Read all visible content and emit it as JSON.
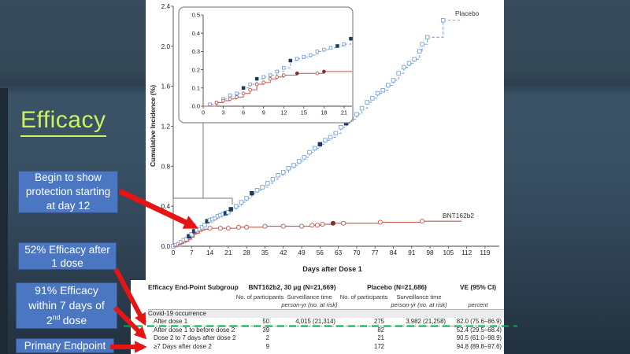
{
  "slide": {
    "title": "Efficacy",
    "callout1": "Begin to show\nprotection starting\nat day 12",
    "callout2": "52% Efficacy after\n1 dose",
    "callout3_l12": "91% Efficacy\nwithin 7 days of",
    "callout3_base": "2",
    "callout3_sup": "nd",
    "callout3_rest": "dose",
    "callout4": "Primary Endpoint",
    "colors": {
      "title": "#ccf35f",
      "callout_fill": "#4a76c2",
      "callout_border": "#35548c",
      "arrow": "#e61414",
      "highlight_line": "#00a651",
      "placebo": "#7aa3d6",
      "placebo_filled": "#1d3a66",
      "bnt162b2": "#c4564a",
      "bnt162b2_filled": "#8b2f24"
    }
  },
  "chart_data": [
    {
      "id": "main",
      "type": "line",
      "title": "",
      "xlabel": "Days after Dose 1",
      "ylabel": "Cumulative Incidence (%)",
      "xlim": [
        0,
        119
      ],
      "ylim": [
        0,
        2.4
      ],
      "xticks": [
        0,
        7,
        14,
        21,
        28,
        35,
        42,
        49,
        56,
        63,
        70,
        77,
        84,
        91,
        98,
        105,
        112,
        119
      ],
      "yticks": [
        "0.0",
        "0.4",
        "0.8",
        "1.2",
        "1.6",
        "2.0",
        "2.4"
      ],
      "grid": false,
      "legend_position": "inline-end-labels",
      "series": [
        {
          "name": "Placebo",
          "color": "#7aa3d6",
          "fill_color": "#1d3a66",
          "dash": true,
          "marker": "square",
          "x": [
            0,
            1,
            2,
            3,
            4,
            5,
            6,
            7,
            8,
            9,
            10,
            11,
            12,
            13,
            14,
            15,
            16,
            17,
            18,
            19,
            20,
            21,
            22,
            24,
            26,
            28,
            30,
            32,
            34,
            36,
            38,
            40,
            42,
            44,
            46,
            48,
            50,
            52,
            54,
            56,
            58,
            60,
            62,
            64,
            66,
            68,
            70,
            72,
            74,
            76,
            78,
            80,
            82,
            84,
            86,
            88,
            90,
            92,
            94,
            95,
            97,
            103,
            110
          ],
          "y": [
            0,
            0.01,
            0.02,
            0.04,
            0.06,
            0.07,
            0.1,
            0.12,
            0.15,
            0.16,
            0.17,
            0.19,
            0.21,
            0.25,
            0.26,
            0.27,
            0.28,
            0.3,
            0.31,
            0.32,
            0.33,
            0.34,
            0.37,
            0.4,
            0.44,
            0.48,
            0.53,
            0.56,
            0.59,
            0.63,
            0.67,
            0.71,
            0.74,
            0.78,
            0.81,
            0.85,
            0.89,
            0.94,
            0.98,
            1.02,
            1.06,
            1.09,
            1.13,
            1.19,
            1.23,
            1.27,
            1.32,
            1.38,
            1.44,
            1.48,
            1.53,
            1.56,
            1.61,
            1.66,
            1.73,
            1.79,
            1.83,
            1.87,
            1.95,
            2.02,
            2.09,
            2.26,
            2.26
          ],
          "filled_x": [
            6,
            8,
            13,
            20,
            22,
            30,
            56,
            66
          ]
        },
        {
          "name": "BNT162b2",
          "color": "#c4564a",
          "fill_color": "#8b2f24",
          "dash": false,
          "marker": "circle",
          "x": [
            0,
            2,
            3,
            4,
            5,
            6,
            7,
            8,
            9,
            10,
            11,
            12,
            14,
            18,
            21,
            25,
            28,
            32,
            35,
            42,
            49,
            53,
            55,
            57,
            61,
            65,
            79,
            95,
            110
          ],
          "y": [
            0,
            0.02,
            0.03,
            0.04,
            0.05,
            0.07,
            0.09,
            0.12,
            0.13,
            0.15,
            0.16,
            0.17,
            0.18,
            0.18,
            0.18,
            0.19,
            0.19,
            0.19,
            0.2,
            0.2,
            0.2,
            0.21,
            0.21,
            0.22,
            0.23,
            0.23,
            0.24,
            0.25,
            0.25
          ],
          "marker_x": [
            14,
            18,
            21,
            25,
            28,
            35,
            42,
            49,
            53,
            55,
            57,
            61,
            65,
            79,
            95
          ],
          "filled_x": [
            61
          ]
        }
      ]
    },
    {
      "id": "inset",
      "type": "line",
      "title": "",
      "xlabel": "",
      "ylabel": "",
      "xlim": [
        0,
        22.5
      ],
      "ylim": [
        0,
        0.5
      ],
      "xticks": [
        0,
        3,
        6,
        9,
        12,
        15,
        18,
        21
      ],
      "yticks": [
        "0.0",
        "0.1",
        "0.2",
        "0.3",
        "0.4",
        "0.5"
      ],
      "grid": false,
      "series": [
        {
          "name": "Placebo",
          "color": "#7aa3d6",
          "fill_color": "#1d3a66",
          "dash": true,
          "marker": "square",
          "x": [
            0,
            1,
            2,
            3,
            4,
            5,
            6,
            7,
            8,
            9,
            10,
            11,
            12,
            13,
            14,
            15,
            16,
            17,
            18,
            19,
            20,
            21,
            22
          ],
          "y": [
            0,
            0.01,
            0.02,
            0.04,
            0.06,
            0.07,
            0.1,
            0.12,
            0.15,
            0.16,
            0.17,
            0.19,
            0.21,
            0.25,
            0.26,
            0.27,
            0.28,
            0.3,
            0.31,
            0.32,
            0.33,
            0.34,
            0.37
          ],
          "marker_x": [
            1,
            2,
            3,
            4,
            5,
            6,
            7,
            8,
            9,
            10,
            11,
            12,
            13,
            14,
            15,
            16,
            17,
            18,
            19,
            20,
            21,
            22
          ],
          "filled_x": [
            6,
            8,
            13,
            20,
            22
          ]
        },
        {
          "name": "BNT162b2",
          "color": "#c4564a",
          "fill_color": "#8b2f24",
          "dash": false,
          "marker": "circle",
          "x": [
            0,
            2,
            3,
            4,
            5,
            6,
            7,
            8,
            9,
            10,
            11,
            12,
            14,
            17,
            18,
            22.2
          ],
          "y": [
            0,
            0.02,
            0.03,
            0.04,
            0.05,
            0.07,
            0.09,
            0.12,
            0.13,
            0.15,
            0.16,
            0.17,
            0.18,
            0.18,
            0.19,
            0.19
          ],
          "marker_x": [
            2,
            3,
            4,
            5,
            6,
            7,
            8,
            9,
            10,
            11,
            12,
            14,
            17,
            18
          ],
          "filled_x": [
            14,
            18
          ]
        }
      ]
    }
  ],
  "table": {
    "col0_header": "Efficacy End-Point Subgroup",
    "group1_header": "BNT162b2, 30 μg (N=21,669)",
    "group2_header": "Placebo (N=21,686)",
    "ve_header": "VE (95% CI)",
    "sub_n": "No. of participants",
    "sub_surv": "Surveillance time",
    "sub_surv_unit": "person-yr (no. at risk)",
    "ve_unit": "percent",
    "section": "Covid-19 occurrence",
    "rows": [
      {
        "label": "After dose 1",
        "bnt_n": "50",
        "bnt_surv": "4,015 (21,314)",
        "plc_n": "275",
        "plc_surv": "3,982 (21,258)",
        "ve": "82.0 (75.6–86.9)",
        "highlight": true
      },
      {
        "label": "After dose 1 to before dose 2",
        "bnt_n": "39",
        "bnt_surv": "",
        "plc_n": "82",
        "plc_surv": "",
        "ve": "52.4 (29.5–68.4)",
        "highlight": false
      },
      {
        "label": "Dose 2 to 7 days after dose 2",
        "bnt_n": "2",
        "bnt_surv": "",
        "plc_n": "21",
        "plc_surv": "",
        "ve": "90.5 (61.0–98.9)",
        "highlight": false
      },
      {
        "label": "≥7 Days after dose 2",
        "bnt_n": "9",
        "bnt_surv": "",
        "plc_n": "172",
        "plc_surv": "",
        "ve": "94.8 (89.8–97.6)",
        "highlight": false
      }
    ]
  }
}
